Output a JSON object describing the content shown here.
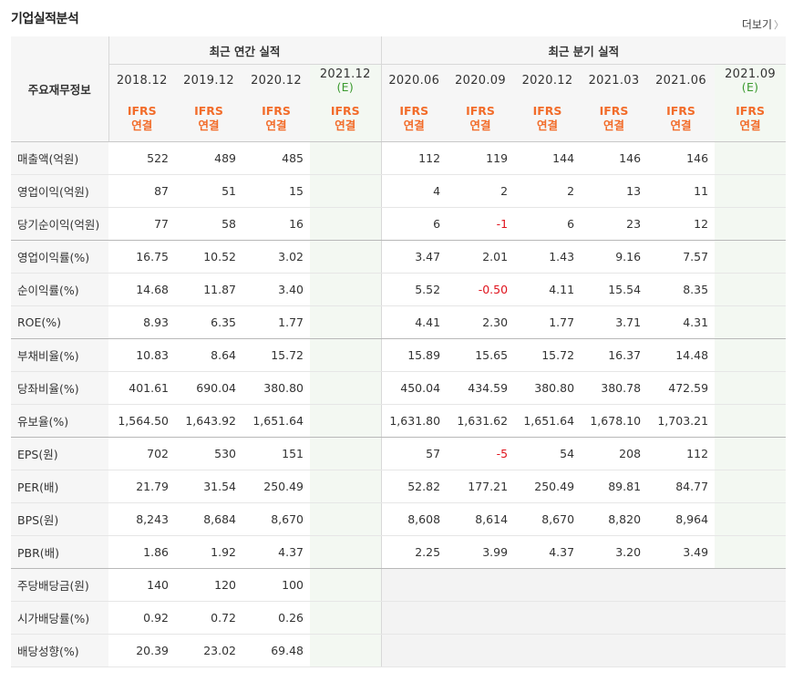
{
  "title": "기업실적분석",
  "more_label": "더보기",
  "row_header_label": "주요재무정보",
  "annual_group_label": "최근 연간 실적",
  "quarter_group_label": "최근 분기 실적",
  "annual_periods": [
    "2018.12",
    "2019.12",
    "2020.12",
    "2021.12"
  ],
  "quarter_periods": [
    "2020.06",
    "2020.09",
    "2020.12",
    "2021.03",
    "2021.06",
    "2021.09"
  ],
  "estimate_mark": "(E)",
  "basis_top": "IFRS",
  "basis_bottom": "연결",
  "rows": [
    {
      "label": "매출액(억원)",
      "annual": [
        "522",
        "489",
        "485",
        ""
      ],
      "quarter": [
        "112",
        "119",
        "144",
        "146",
        "146",
        ""
      ]
    },
    {
      "label": "영업이익(억원)",
      "annual": [
        "87",
        "51",
        "15",
        ""
      ],
      "quarter": [
        "4",
        "2",
        "2",
        "13",
        "11",
        ""
      ]
    },
    {
      "label": "당기순이익(억원)",
      "annual": [
        "77",
        "58",
        "16",
        ""
      ],
      "quarter": [
        "6",
        "-1",
        "6",
        "23",
        "12",
        ""
      ]
    },
    {
      "label": "영업이익률(%)",
      "annual": [
        "16.75",
        "10.52",
        "3.02",
        ""
      ],
      "quarter": [
        "3.47",
        "2.01",
        "1.43",
        "9.16",
        "7.57",
        ""
      ]
    },
    {
      "label": "순이익률(%)",
      "annual": [
        "14.68",
        "11.87",
        "3.40",
        ""
      ],
      "quarter": [
        "5.52",
        "-0.50",
        "4.11",
        "15.54",
        "8.35",
        ""
      ]
    },
    {
      "label": "ROE(%)",
      "annual": [
        "8.93",
        "6.35",
        "1.77",
        ""
      ],
      "quarter": [
        "4.41",
        "2.30",
        "1.77",
        "3.71",
        "4.31",
        ""
      ]
    },
    {
      "label": "부채비율(%)",
      "annual": [
        "10.83",
        "8.64",
        "15.72",
        ""
      ],
      "quarter": [
        "15.89",
        "15.65",
        "15.72",
        "16.37",
        "14.48",
        ""
      ]
    },
    {
      "label": "당좌비율(%)",
      "annual": [
        "401.61",
        "690.04",
        "380.80",
        ""
      ],
      "quarter": [
        "450.04",
        "434.59",
        "380.80",
        "380.78",
        "472.59",
        ""
      ]
    },
    {
      "label": "유보율(%)",
      "annual": [
        "1,564.50",
        "1,643.92",
        "1,651.64",
        ""
      ],
      "quarter": [
        "1,631.80",
        "1,631.62",
        "1,651.64",
        "1,678.10",
        "1,703.21",
        ""
      ]
    },
    {
      "label": "EPS(원)",
      "annual": [
        "702",
        "530",
        "151",
        ""
      ],
      "quarter": [
        "57",
        "-5",
        "54",
        "208",
        "112",
        ""
      ]
    },
    {
      "label": "PER(배)",
      "annual": [
        "21.79",
        "31.54",
        "250.49",
        ""
      ],
      "quarter": [
        "52.82",
        "177.21",
        "250.49",
        "89.81",
        "84.77",
        ""
      ]
    },
    {
      "label": "BPS(원)",
      "annual": [
        "8,243",
        "8,684",
        "8,670",
        ""
      ],
      "quarter": [
        "8,608",
        "8,614",
        "8,670",
        "8,820",
        "8,964",
        ""
      ]
    },
    {
      "label": "PBR(배)",
      "annual": [
        "1.86",
        "1.92",
        "4.37",
        ""
      ],
      "quarter": [
        "2.25",
        "3.99",
        "4.37",
        "3.20",
        "3.49",
        ""
      ]
    },
    {
      "label": "주당배당금(원)",
      "annual": [
        "140",
        "120",
        "100",
        ""
      ],
      "quarter": null
    },
    {
      "label": "시가배당률(%)",
      "annual": [
        "0.92",
        "0.72",
        "0.26",
        ""
      ],
      "quarter": null
    },
    {
      "label": "배당성향(%)",
      "annual": [
        "20.39",
        "23.02",
        "69.48",
        ""
      ],
      "quarter": null
    }
  ],
  "group_ends": [
    2,
    5,
    8,
    12
  ]
}
